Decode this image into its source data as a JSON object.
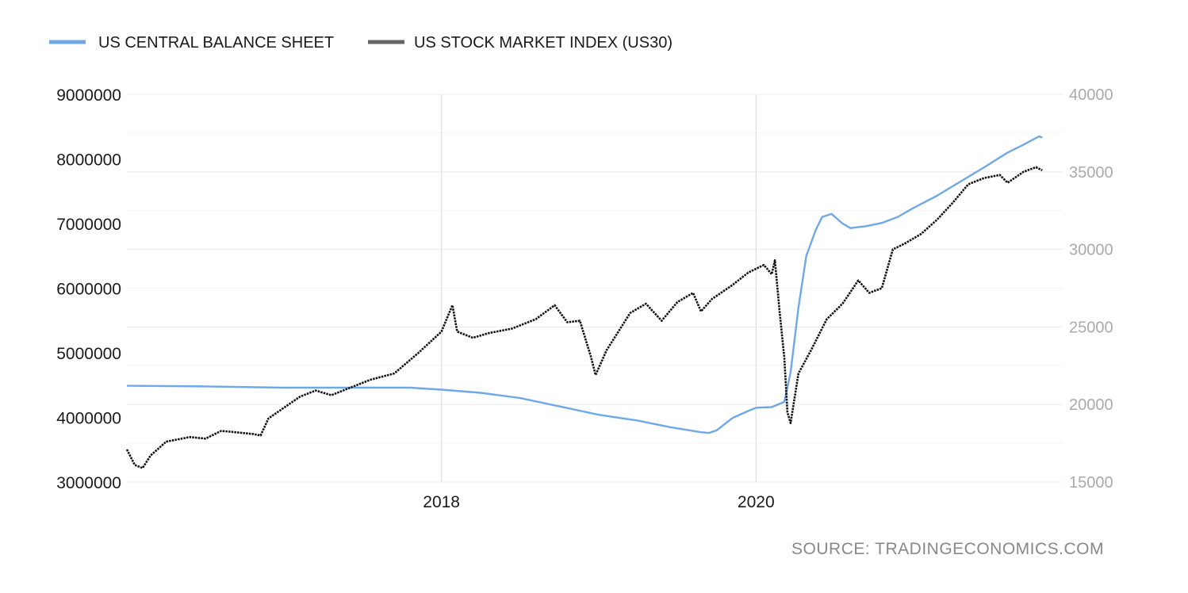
{
  "chart_data": {
    "type": "line",
    "title": "",
    "legend": {
      "placement": "top-left"
    },
    "source": "SOURCE: TRADINGECONOMICS.COM",
    "x_range": [
      2016.0,
      2021.95
    ],
    "x_ticks": [
      {
        "value": 2018.0,
        "label": "2018"
      },
      {
        "value": 2020.0,
        "label": "2020"
      }
    ],
    "y_left": {
      "range": [
        3000000,
        9000000
      ],
      "ticks": [
        {
          "value": 3000000,
          "label": "3000000"
        },
        {
          "value": 4000000,
          "label": "4000000"
        },
        {
          "value": 5000000,
          "label": "5000000"
        },
        {
          "value": 6000000,
          "label": "6000000"
        },
        {
          "value": 7000000,
          "label": "7000000"
        },
        {
          "value": 8000000,
          "label": "8000000"
        },
        {
          "value": 9000000,
          "label": "9000000"
        }
      ]
    },
    "y_right": {
      "range": [
        15000,
        40000
      ],
      "ticks": [
        {
          "value": 15000,
          "label": "15000"
        },
        {
          "value": 20000,
          "label": "20000"
        },
        {
          "value": 25000,
          "label": "25000"
        },
        {
          "value": 30000,
          "label": "30000"
        },
        {
          "value": 35000,
          "label": "35000"
        },
        {
          "value": 40000,
          "label": "40000"
        }
      ]
    },
    "series": [
      {
        "name": "US CENTRAL BALANCE SHEET",
        "axis": "left",
        "color": "#6fa8e6",
        "points": [
          [
            2016.0,
            4490000
          ],
          [
            2016.5,
            4480000
          ],
          [
            2017.0,
            4460000
          ],
          [
            2017.5,
            4460000
          ],
          [
            2017.8,
            4460000
          ],
          [
            2018.0,
            4430000
          ],
          [
            2018.25,
            4380000
          ],
          [
            2018.5,
            4300000
          ],
          [
            2018.75,
            4170000
          ],
          [
            2019.0,
            4040000
          ],
          [
            2019.25,
            3950000
          ],
          [
            2019.45,
            3850000
          ],
          [
            2019.65,
            3770000
          ],
          [
            2019.7,
            3760000
          ],
          [
            2019.75,
            3800000
          ],
          [
            2019.85,
            3990000
          ],
          [
            2019.95,
            4100000
          ],
          [
            2020.0,
            4150000
          ],
          [
            2020.1,
            4160000
          ],
          [
            2020.18,
            4240000
          ],
          [
            2020.22,
            4700000
          ],
          [
            2020.27,
            5700000
          ],
          [
            2020.32,
            6500000
          ],
          [
            2020.38,
            6900000
          ],
          [
            2020.42,
            7100000
          ],
          [
            2020.48,
            7150000
          ],
          [
            2020.55,
            7000000
          ],
          [
            2020.6,
            6930000
          ],
          [
            2020.7,
            6960000
          ],
          [
            2020.8,
            7010000
          ],
          [
            2020.9,
            7100000
          ],
          [
            2021.0,
            7240000
          ],
          [
            2021.15,
            7430000
          ],
          [
            2021.3,
            7650000
          ],
          [
            2021.45,
            7870000
          ],
          [
            2021.6,
            8100000
          ],
          [
            2021.7,
            8220000
          ],
          [
            2021.8,
            8350000
          ],
          [
            2021.82,
            8330000
          ]
        ]
      },
      {
        "name": "US STOCK MARKET INDEX (US30)",
        "axis": "right",
        "color": "#111111",
        "points": [
          [
            2016.0,
            17100
          ],
          [
            2016.05,
            16100
          ],
          [
            2016.1,
            15900
          ],
          [
            2016.15,
            16700
          ],
          [
            2016.25,
            17600
          ],
          [
            2016.4,
            17900
          ],
          [
            2016.5,
            17800
          ],
          [
            2016.6,
            18300
          ],
          [
            2016.7,
            18200
          ],
          [
            2016.8,
            18100
          ],
          [
            2016.85,
            18000
          ],
          [
            2016.9,
            19100
          ],
          [
            2017.0,
            19800
          ],
          [
            2017.1,
            20500
          ],
          [
            2017.2,
            20900
          ],
          [
            2017.3,
            20600
          ],
          [
            2017.4,
            21000
          ],
          [
            2017.55,
            21600
          ],
          [
            2017.7,
            22000
          ],
          [
            2017.85,
            23300
          ],
          [
            2018.0,
            24700
          ],
          [
            2018.07,
            26400
          ],
          [
            2018.1,
            24700
          ],
          [
            2018.2,
            24300
          ],
          [
            2018.3,
            24600
          ],
          [
            2018.45,
            24900
          ],
          [
            2018.6,
            25500
          ],
          [
            2018.72,
            26400
          ],
          [
            2018.8,
            25300
          ],
          [
            2018.88,
            25400
          ],
          [
            2018.95,
            23100
          ],
          [
            2018.98,
            21900
          ],
          [
            2019.05,
            23500
          ],
          [
            2019.2,
            25900
          ],
          [
            2019.3,
            26500
          ],
          [
            2019.4,
            25400
          ],
          [
            2019.5,
            26600
          ],
          [
            2019.6,
            27200
          ],
          [
            2019.65,
            26000
          ],
          [
            2019.72,
            26800
          ],
          [
            2019.85,
            27700
          ],
          [
            2019.95,
            28500
          ],
          [
            2020.05,
            29000
          ],
          [
            2020.1,
            28400
          ],
          [
            2020.12,
            29300
          ],
          [
            2020.15,
            26000
          ],
          [
            2020.18,
            23000
          ],
          [
            2020.2,
            19500
          ],
          [
            2020.22,
            18800
          ],
          [
            2020.27,
            22000
          ],
          [
            2020.35,
            23500
          ],
          [
            2020.45,
            25500
          ],
          [
            2020.55,
            26500
          ],
          [
            2020.65,
            28000
          ],
          [
            2020.72,
            27200
          ],
          [
            2020.8,
            27500
          ],
          [
            2020.87,
            30000
          ],
          [
            2020.95,
            30400
          ],
          [
            2021.05,
            31000
          ],
          [
            2021.15,
            31900
          ],
          [
            2021.25,
            33000
          ],
          [
            2021.35,
            34200
          ],
          [
            2021.45,
            34600
          ],
          [
            2021.55,
            34800
          ],
          [
            2021.6,
            34300
          ],
          [
            2021.7,
            35000
          ],
          [
            2021.78,
            35300
          ],
          [
            2021.82,
            35100
          ]
        ]
      }
    ]
  }
}
